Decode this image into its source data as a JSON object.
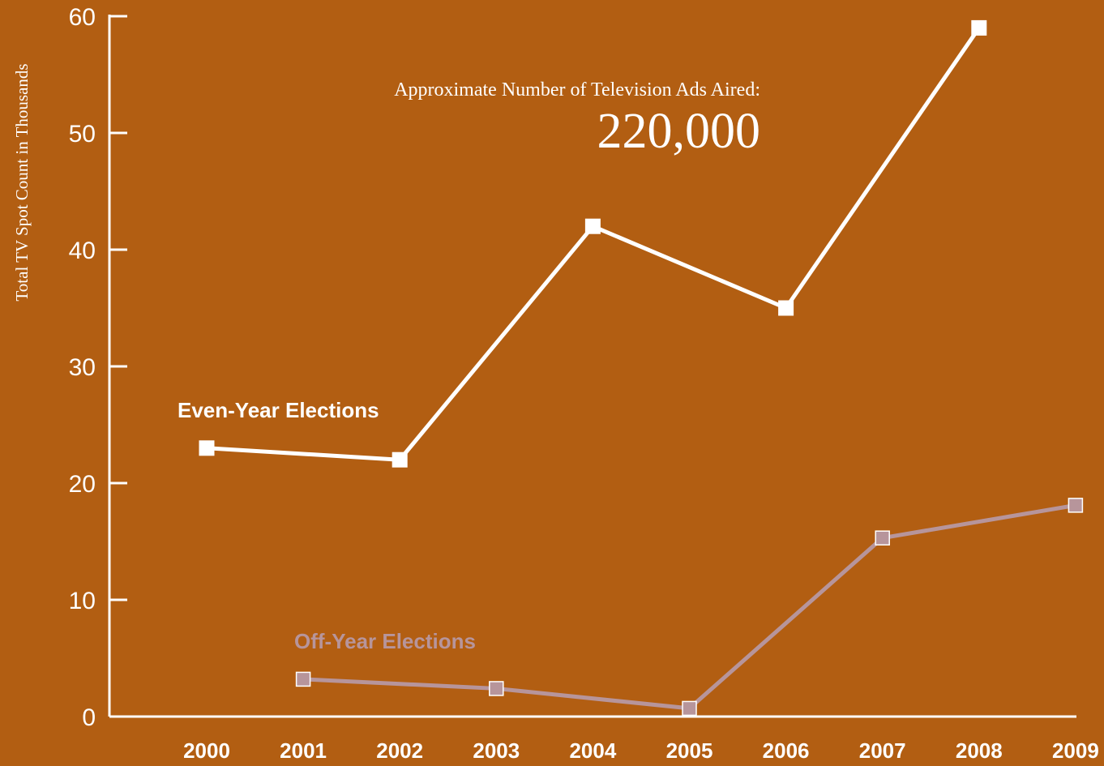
{
  "chart_data": {
    "type": "line",
    "subtitle": "Approximate Number of Television Ads Aired:",
    "total": "220,000",
    "ylabel": "Total TV Spot Count in Thousands",
    "xlabel": "",
    "ylim": [
      0,
      60
    ],
    "yticks": [
      0,
      10,
      20,
      30,
      40,
      50,
      60
    ],
    "categories": [
      "2000",
      "2001",
      "2002",
      "2003",
      "2004",
      "2005",
      "2006",
      "2007",
      "2008",
      "2009"
    ],
    "series": [
      {
        "name": "Even-Year Elections",
        "color": "#ffffff",
        "x": [
          "2000",
          "2002",
          "2004",
          "2006",
          "2008"
        ],
        "values": [
          23,
          22,
          42,
          35,
          59
        ]
      },
      {
        "name": "Off-Year Elections",
        "color": "#b7959b",
        "x": [
          "2001",
          "2003",
          "2005",
          "2007",
          "2009"
        ],
        "values": [
          3.2,
          2.4,
          0.7,
          15.3,
          18.1
        ]
      }
    ],
    "grid": false,
    "legend": "inline labels"
  },
  "colors": {
    "background": "#b25e12",
    "axis": "#ffffff",
    "even_series": "#ffffff",
    "odd_series": "#b7959b"
  }
}
